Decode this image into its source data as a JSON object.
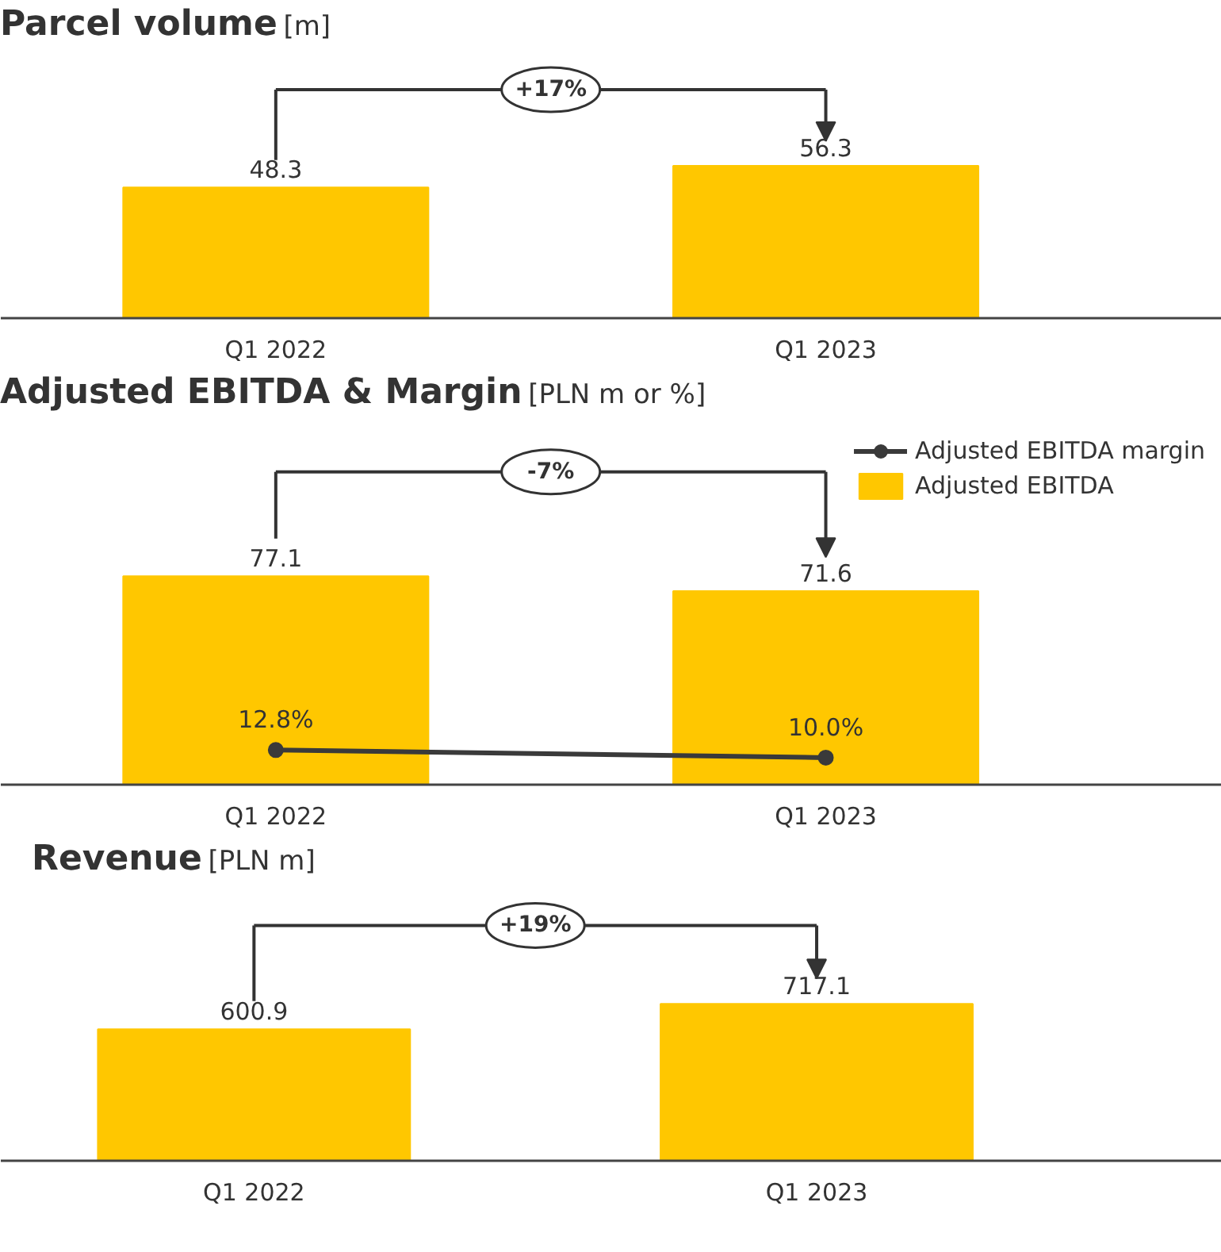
{
  "chart_data": [
    {
      "type": "bar",
      "title": "Parcel volume",
      "subtitle": "[m]",
      "categories": [
        "Q1 2022",
        "Q1 2023"
      ],
      "values": [
        48.3,
        56.3
      ],
      "color": "#ffc700",
      "data_labels": true,
      "annotations": [
        "+17%"
      ]
    },
    {
      "type": "bar",
      "title": "Adjusted EBITDA & Margin",
      "subtitle": "[PLN m or %]",
      "categories": [
        "Q1 2022",
        "Q1 2023"
      ],
      "legend": "top right",
      "annotations": [
        "-7%"
      ],
      "series": [
        {
          "name": "Adjusted EBITDA",
          "type": "bar",
          "color": "#ffc700",
          "values": [
            77.1,
            71.6
          ],
          "value_labels": [
            "77.1",
            "71.6"
          ]
        },
        {
          "name": "Adjusted EBITDA margin",
          "type": "line",
          "color": "#3a3a3a",
          "marker": "circle",
          "values": [
            12.8,
            10.0
          ],
          "value_labels": [
            "12.8%",
            "10.0%"
          ]
        }
      ]
    },
    {
      "type": "bar",
      "title": "Revenue",
      "subtitle": "[PLN m]",
      "categories": [
        "Q1 2022",
        "Q1 2023"
      ],
      "values": [
        600.9,
        717.1
      ],
      "color": "#ffc700",
      "data_labels": true,
      "annotations": [
        "+19%"
      ]
    }
  ]
}
